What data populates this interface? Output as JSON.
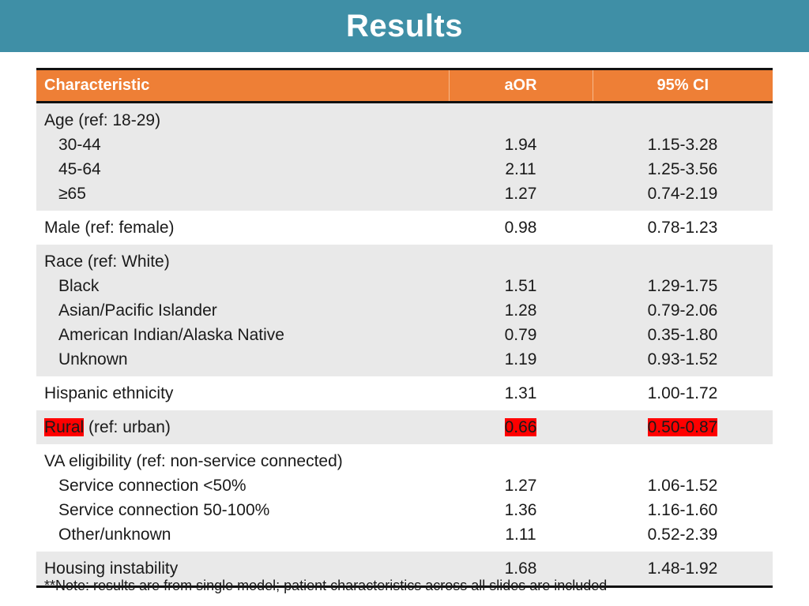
{
  "title": "Results",
  "table": {
    "headers": {
      "characteristic": "Characteristic",
      "aor": "aOR",
      "ci": "95% CI"
    },
    "groups": [
      {
        "label": "Age (ref: 18-29)",
        "rows": [
          {
            "label": "30-44",
            "aor": "1.94",
            "ci": "1.15-3.28"
          },
          {
            "label": "45-64",
            "aor": "2.11",
            "ci": "1.25-3.56"
          },
          {
            "label": "≥65",
            "aor": "1.27",
            "ci": "0.74-2.19"
          }
        ]
      },
      {
        "label": "Male (ref: female)",
        "aor": "0.98",
        "ci": "0.78-1.23"
      },
      {
        "label": "Race (ref: White)",
        "rows": [
          {
            "label": "Black",
            "aor": "1.51",
            "ci": "1.29-1.75"
          },
          {
            "label": "Asian/Pacific Islander",
            "aor": "1.28",
            "ci": "0.79-2.06"
          },
          {
            "label": "American Indian/Alaska Native",
            "aor": "0.79",
            "ci": "0.35-1.80"
          },
          {
            "label": "Unknown",
            "aor": "1.19",
            "ci": "0.93-1.52"
          }
        ]
      },
      {
        "label": "Hispanic ethnicity",
        "aor": "1.31",
        "ci": "1.00-1.72"
      },
      {
        "label_highlight": "Rural",
        "label_rest": " (ref: urban)",
        "aor": "0.66",
        "ci": "0.50-0.87",
        "highlight_color": "#ff0000"
      },
      {
        "label": "VA eligibility (ref: non-service connected)",
        "rows": [
          {
            "label": "Service connection <50%",
            "aor": "1.27",
            "ci": "1.06-1.52"
          },
          {
            "label": "Service connection 50-100%",
            "aor": "1.36",
            "ci": "1.16-1.60"
          },
          {
            "label": "Other/unknown",
            "aor": "1.11",
            "ci": "0.52-2.39"
          }
        ]
      },
      {
        "label": "Housing instability",
        "aor": "1.68",
        "ci": "1.48-1.92"
      }
    ]
  },
  "note": "**Note: results are from single model; patient characteristics across all slides are included",
  "colors": {
    "title_bar": "#3f8fa6",
    "header_bg": "#ee7f36",
    "row_shade": "#e9e9e9",
    "highlight": "#ff0000"
  }
}
